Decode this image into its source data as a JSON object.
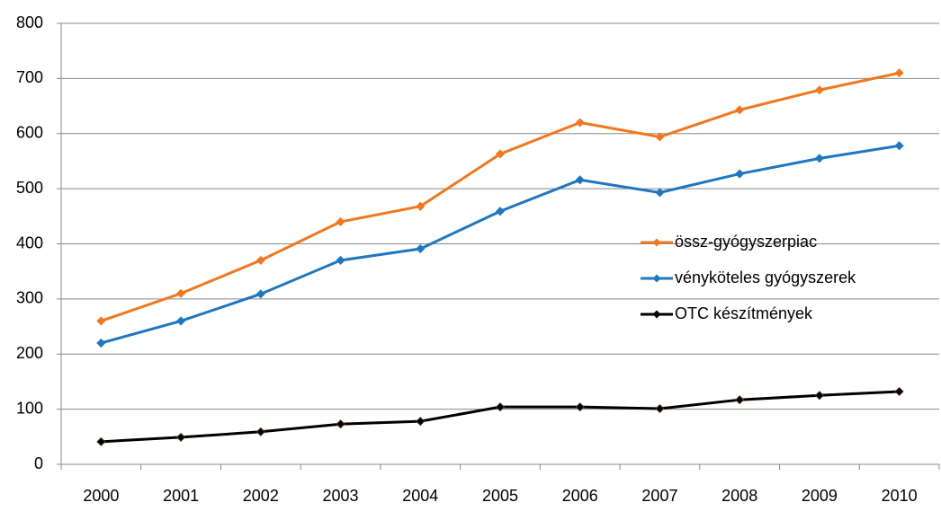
{
  "chart_data": {
    "type": "line",
    "categories": [
      "2000",
      "2001",
      "2002",
      "2003",
      "2004",
      "2005",
      "2006",
      "2007",
      "2008",
      "2009",
      "2010"
    ],
    "series": [
      {
        "name": "össz-gyógyszerpiac",
        "color": "#f07820",
        "values": [
          260,
          310,
          370,
          440,
          468,
          563,
          620,
          594,
          643,
          679,
          710
        ]
      },
      {
        "name": "vényköteles gyógyszerek",
        "color": "#1f77c0",
        "values": [
          220,
          260,
          309,
          370,
          391,
          459,
          516,
          493,
          527,
          555,
          578
        ]
      },
      {
        "name": "OTC készítmények",
        "color": "#000000",
        "values": [
          41,
          49,
          59,
          73,
          78,
          104,
          104,
          101,
          117,
          125,
          132
        ]
      }
    ],
    "ylim": [
      0,
      800
    ],
    "yticks": [
      0,
      100,
      200,
      300,
      400,
      500,
      600,
      700,
      800
    ],
    "grid": true,
    "legend": "right"
  }
}
